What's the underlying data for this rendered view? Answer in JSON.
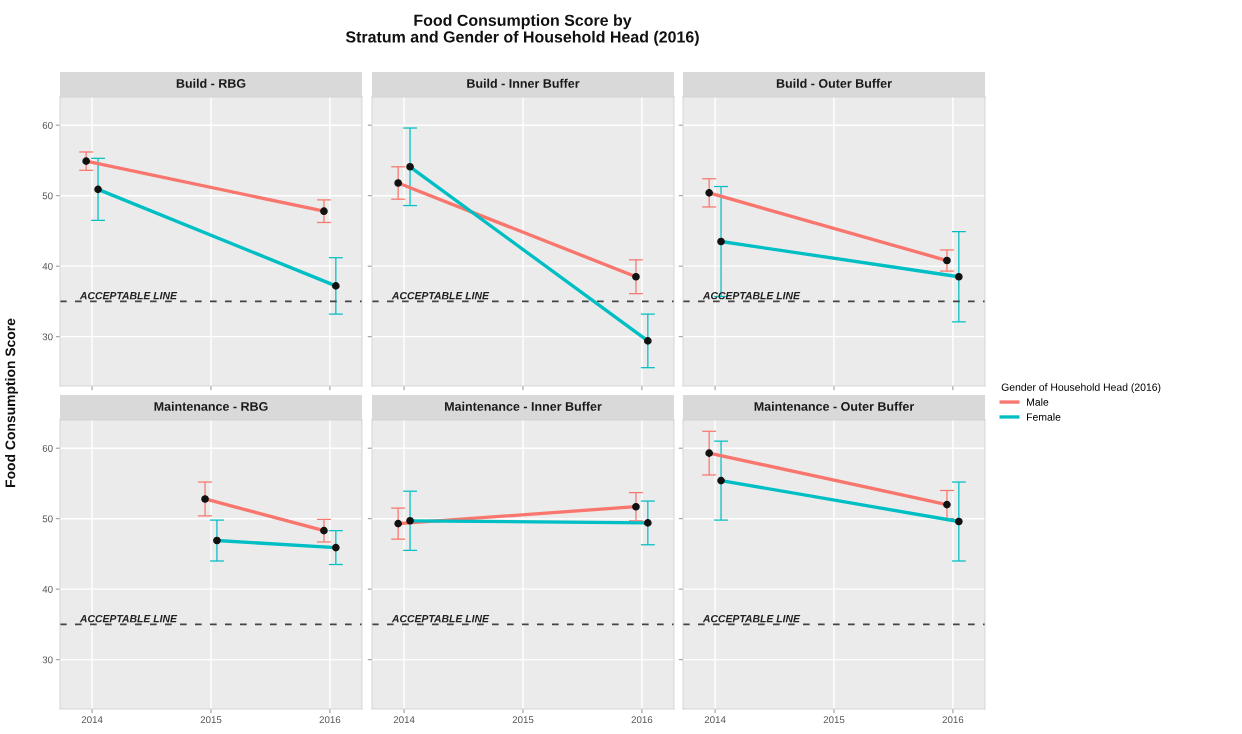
{
  "chart_data": [
    {
      "type": "line",
      "subtitle": "Build - RBG",
      "ylabel": "Food Consumption Score",
      "legend": "right",
      "legend_title": "Gender of Household Head (2016)",
      "xlim": [
        2013.73,
        2016.27
      ],
      "xticks": [
        2014,
        2015,
        2016
      ],
      "ylim": [
        23,
        64
      ],
      "yticks": [
        30,
        40,
        50,
        60
      ],
      "grid": true,
      "marker": "circle",
      "tick_labels": "y",
      "ref_lines": [
        {
          "axis": "y",
          "value": 35,
          "label": "ACCEPTABLE LINE",
          "color": "#444444",
          "line_style": "dashed"
        }
      ],
      "series": [
        {
          "name": "Male",
          "color": "#f8766d",
          "x": [
            2013.95,
            2015.95
          ],
          "values": [
            54.9,
            47.8
          ],
          "errors": [
            1.3,
            1.6
          ]
        },
        {
          "name": "Female",
          "color": "#00bfc4",
          "x": [
            2014.05,
            2016.05
          ],
          "values": [
            50.9,
            37.2
          ],
          "errors": [
            4.4,
            4.0
          ]
        }
      ]
    },
    {
      "type": "line",
      "title": "Food Consumption Score by\nStratum and Gender of Household Head (2016)",
      "subtitle": "Build - Inner Buffer",
      "xlim": [
        2013.73,
        2016.27
      ],
      "xticks": [
        2014,
        2015,
        2016
      ],
      "ylim": [
        23,
        64
      ],
      "yticks": [
        30,
        40,
        50,
        60
      ],
      "grid": true,
      "marker": "circle",
      "tick_labels": false,
      "ref_lines": [
        {
          "axis": "y",
          "value": 35,
          "label": "ACCEPTABLE LINE",
          "color": "#444444",
          "line_style": "dashed"
        }
      ],
      "series": [
        {
          "color": "#f8766d",
          "x": [
            2013.95,
            2015.95
          ],
          "values": [
            51.8,
            38.5
          ],
          "errors": [
            2.3,
            2.4
          ]
        },
        {
          "color": "#00bfc4",
          "x": [
            2014.05,
            2016.05
          ],
          "values": [
            54.1,
            29.4
          ],
          "errors": [
            5.5,
            3.8
          ]
        }
      ]
    },
    {
      "type": "line",
      "subtitle": "Build - Outer Buffer",
      "xlim": [
        2013.73,
        2016.27
      ],
      "xticks": [
        2014,
        2015,
        2016
      ],
      "ylim": [
        23,
        64
      ],
      "yticks": [
        30,
        40,
        50,
        60
      ],
      "grid": true,
      "marker": "circle",
      "tick_labels": false,
      "ref_lines": [
        {
          "axis": "y",
          "value": 35,
          "label": "ACCEPTABLE LINE",
          "color": "#444444",
          "line_style": "dashed"
        }
      ],
      "series": [
        {
          "color": "#f8766d",
          "x": [
            2013.95,
            2015.95
          ],
          "values": [
            50.4,
            40.8
          ],
          "errors": [
            2.0,
            1.5
          ]
        },
        {
          "color": "#00bfc4",
          "x": [
            2014.05,
            2016.05
          ],
          "values": [
            43.5,
            38.5
          ],
          "errors": [
            7.8,
            6.4
          ]
        }
      ]
    },
    {
      "type": "line",
      "subtitle": "Maintenance - RBG",
      "xlim": [
        2013.73,
        2016.27
      ],
      "xticks": [
        2014,
        2015,
        2016
      ],
      "ylim": [
        23,
        64
      ],
      "yticks": [
        30,
        40,
        50,
        60
      ],
      "grid": true,
      "marker": "circle",
      "ref_lines": [
        {
          "axis": "y",
          "value": 35,
          "label": "ACCEPTABLE LINE",
          "color": "#444444",
          "line_style": "dashed"
        }
      ],
      "series": [
        {
          "color": "#f8766d",
          "x": [
            2014.95,
            2015.95
          ],
          "values": [
            52.8,
            48.3
          ],
          "errors": [
            2.4,
            1.6
          ]
        },
        {
          "color": "#00bfc4",
          "x": [
            2015.05,
            2016.05
          ],
          "values": [
            46.9,
            45.9
          ],
          "errors": [
            2.9,
            2.4
          ]
        }
      ]
    },
    {
      "type": "line",
      "subtitle": "Maintenance - Inner Buffer",
      "xlim": [
        2013.73,
        2016.27
      ],
      "xticks": [
        2014,
        2015,
        2016
      ],
      "ylim": [
        23,
        64
      ],
      "yticks": [
        30,
        40,
        50,
        60
      ],
      "grid": true,
      "marker": "circle",
      "tick_labels": "x",
      "ref_lines": [
        {
          "axis": "y",
          "value": 35,
          "label": "ACCEPTABLE LINE",
          "color": "#444444",
          "line_style": "dashed"
        }
      ],
      "series": [
        {
          "color": "#f8766d",
          "x": [
            2013.95,
            2015.95
          ],
          "values": [
            49.3,
            51.7
          ],
          "errors": [
            2.2,
            2.0
          ]
        },
        {
          "color": "#00bfc4",
          "x": [
            2014.05,
            2016.05
          ],
          "values": [
            49.7,
            49.4
          ],
          "errors": [
            4.2,
            3.1
          ]
        }
      ]
    },
    {
      "type": "line",
      "subtitle": "Maintenance - Outer Buffer",
      "xlim": [
        2013.73,
        2016.27
      ],
      "xticks": [
        2014,
        2015,
        2016
      ],
      "ylim": [
        23,
        64
      ],
      "yticks": [
        30,
        40,
        50,
        60
      ],
      "grid": true,
      "marker": "circle",
      "tick_labels": "x",
      "ref_lines": [
        {
          "axis": "y",
          "value": 35,
          "label": "ACCEPTABLE LINE",
          "color": "#444444",
          "line_style": "dashed"
        }
      ],
      "series": [
        {
          "color": "#f8766d",
          "x": [
            2013.95,
            2015.95
          ],
          "values": [
            59.3,
            52.0
          ],
          "errors": [
            3.1,
            2.0
          ]
        },
        {
          "color": "#00bfc4",
          "x": [
            2014.05,
            2016.05
          ],
          "values": [
            55.4,
            49.6
          ],
          "errors": [
            5.6,
            5.6
          ]
        }
      ]
    }
  ]
}
